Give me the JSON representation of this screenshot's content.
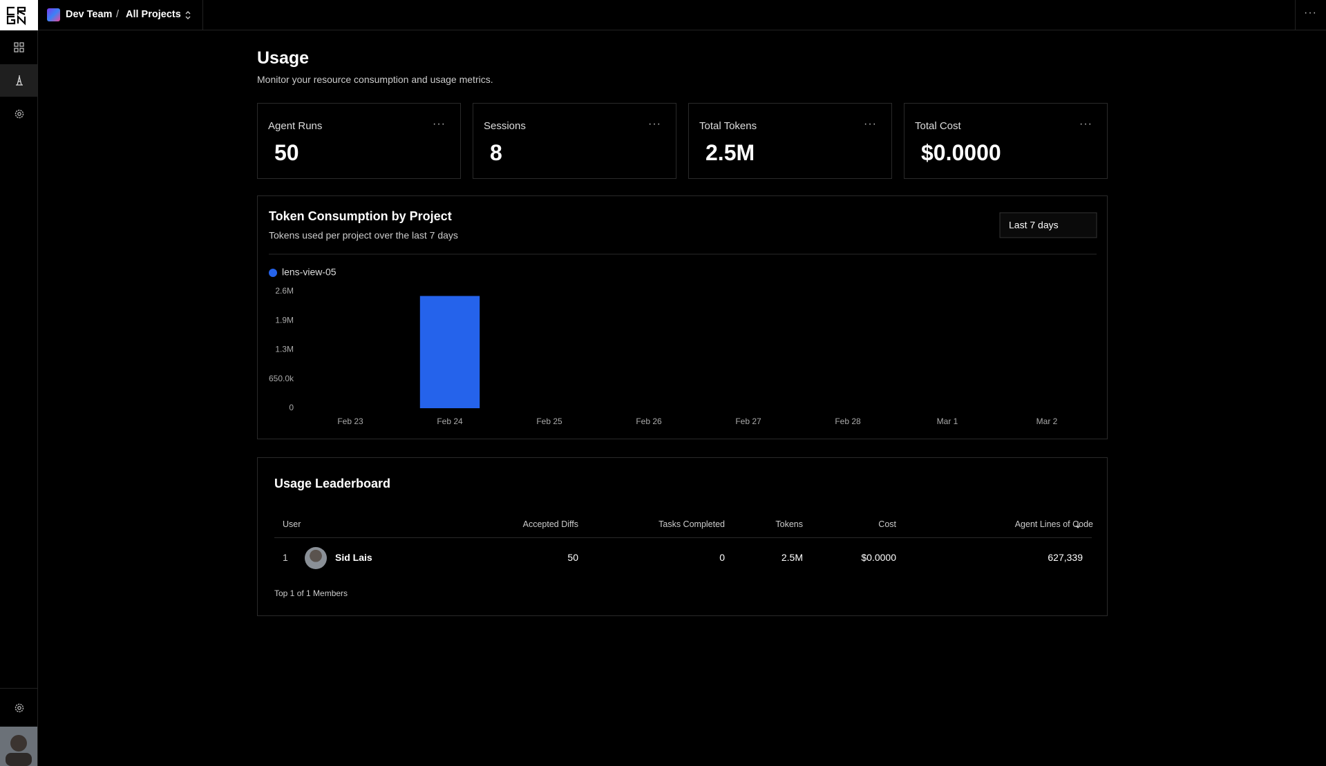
{
  "header": {
    "team": "Dev Team",
    "separator": "/",
    "project": "All Projects"
  },
  "page": {
    "title": "Usage",
    "subtitle": "Monitor your resource consumption and usage metrics."
  },
  "stats": [
    {
      "label": "Agent Runs",
      "value": "50"
    },
    {
      "label": "Sessions",
      "value": "8"
    },
    {
      "label": "Total Tokens",
      "value": "2.5M"
    },
    {
      "label": "Total Cost",
      "value": "$0.0000"
    }
  ],
  "chart_data": {
    "type": "bar",
    "title": "Token Consumption by Project",
    "subtitle": "Tokens used per project over the last 7 days",
    "range_filter": "Last 7 days",
    "categories": [
      "Feb 23",
      "Feb 24",
      "Feb 25",
      "Feb 26",
      "Feb 27",
      "Feb 28",
      "Mar 1",
      "Mar 2"
    ],
    "series": [
      {
        "name": "lens-view-05",
        "color": "#2563eb",
        "values": [
          0,
          2500000,
          0,
          0,
          0,
          0,
          0,
          0
        ]
      }
    ],
    "ylim": [
      0,
      2600000
    ],
    "yticks": [
      0,
      {
        "value": 650000,
        "label": "650.0k"
      },
      {
        "value": 1300000,
        "label": "1.3M"
      },
      {
        "value": 1950000,
        "label": "1.9M"
      },
      {
        "value": 2600000,
        "label": "2.6M"
      }
    ],
    "grid": false,
    "legend": "top-left"
  },
  "leaderboard": {
    "title": "Usage Leaderboard",
    "columns": [
      "User",
      "Accepted Diffs",
      "Tasks Completed",
      "Tokens",
      "Cost",
      "Agent Lines of Code"
    ],
    "rows": [
      {
        "rank": "1",
        "user": "Sid Lais",
        "accepted_diffs": "50",
        "tasks_completed": "0",
        "tokens": "2.5M",
        "cost": "$0.0000",
        "lines": "627,339"
      }
    ],
    "footer": "Top 1 of 1 Members"
  }
}
